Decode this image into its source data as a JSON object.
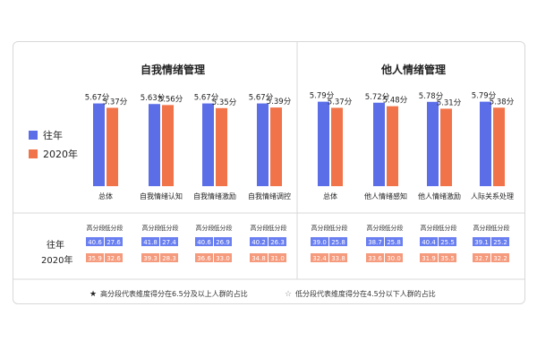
{
  "legend": {
    "items": [
      {
        "label": "往年",
        "color": "#5b6ee8"
      },
      {
        "label": "2020年",
        "color": "#f0734a"
      }
    ]
  },
  "table": {
    "row_labels": [
      "往年",
      "2020年"
    ],
    "col_headers": [
      "高分段",
      "低分段"
    ]
  },
  "footnotes": {
    "star_filled": "★",
    "text1": "高分段代表维度得分在6.5分及以上人群的占比",
    "star_open": "☆",
    "text2": "低分段代表维度得分在4.5分以下人群的占比"
  },
  "colors": {
    "past": "#5b6ee8",
    "y2020": "#f0734a",
    "past_cell": "#6a7ff0",
    "y2020_cell": "#f59a7c"
  },
  "chart_data": [
    {
      "type": "bar",
      "title": "自我情绪管理",
      "categories": [
        "总体",
        "自我情绪认知",
        "自我情绪激励",
        "自我情绪调控"
      ],
      "series": [
        {
          "name": "往年",
          "values": [
            5.67,
            5.63,
            5.67,
            5.67
          ],
          "labels": [
            "5.67分",
            "5.63分",
            "5.67分",
            "5.67分"
          ]
        },
        {
          "name": "2020年",
          "values": [
            5.37,
            5.56,
            5.35,
            5.39
          ],
          "labels": [
            "5.37分",
            "5.56分",
            "5.35分",
            "5.39分"
          ]
        }
      ],
      "ylim": [
        0,
        6.3
      ],
      "table": {
        "往年": [
          [
            "40.6",
            "27.6"
          ],
          [
            "41.8",
            "27.4"
          ],
          [
            "40.6",
            "26.9"
          ],
          [
            "40.2",
            "26.3"
          ]
        ],
        "2020年": [
          [
            "35.9",
            "32.6"
          ],
          [
            "39.3",
            "28.3"
          ],
          [
            "36.6",
            "33.0"
          ],
          [
            "34.8",
            "31.0"
          ]
        ]
      }
    },
    {
      "type": "bar",
      "title": "他人情绪管理",
      "categories": [
        "总体",
        "他人情绪感知",
        "他人情绪激励",
        "人际关系处理"
      ],
      "series": [
        {
          "name": "往年",
          "values": [
            5.79,
            5.72,
            5.78,
            5.79
          ],
          "labels": [
            "5.79分",
            "5.72分",
            "5.78分",
            "5.79分"
          ]
        },
        {
          "name": "2020年",
          "values": [
            5.37,
            5.48,
            5.31,
            5.38
          ],
          "labels": [
            "5.37分",
            "5.48分",
            "5.31分",
            "5.38分"
          ]
        }
      ],
      "ylim": [
        0,
        6.3
      ],
      "table": {
        "往年": [
          [
            "39.0",
            "25.8"
          ],
          [
            "38.7",
            "25.8"
          ],
          [
            "40.4",
            "25.5"
          ],
          [
            "39.1",
            "25.2"
          ]
        ],
        "2020年": [
          [
            "32.4",
            "33.8"
          ],
          [
            "33.6",
            "30.0"
          ],
          [
            "31.9",
            "35.5"
          ],
          [
            "32.7",
            "32.2"
          ]
        ]
      }
    }
  ]
}
